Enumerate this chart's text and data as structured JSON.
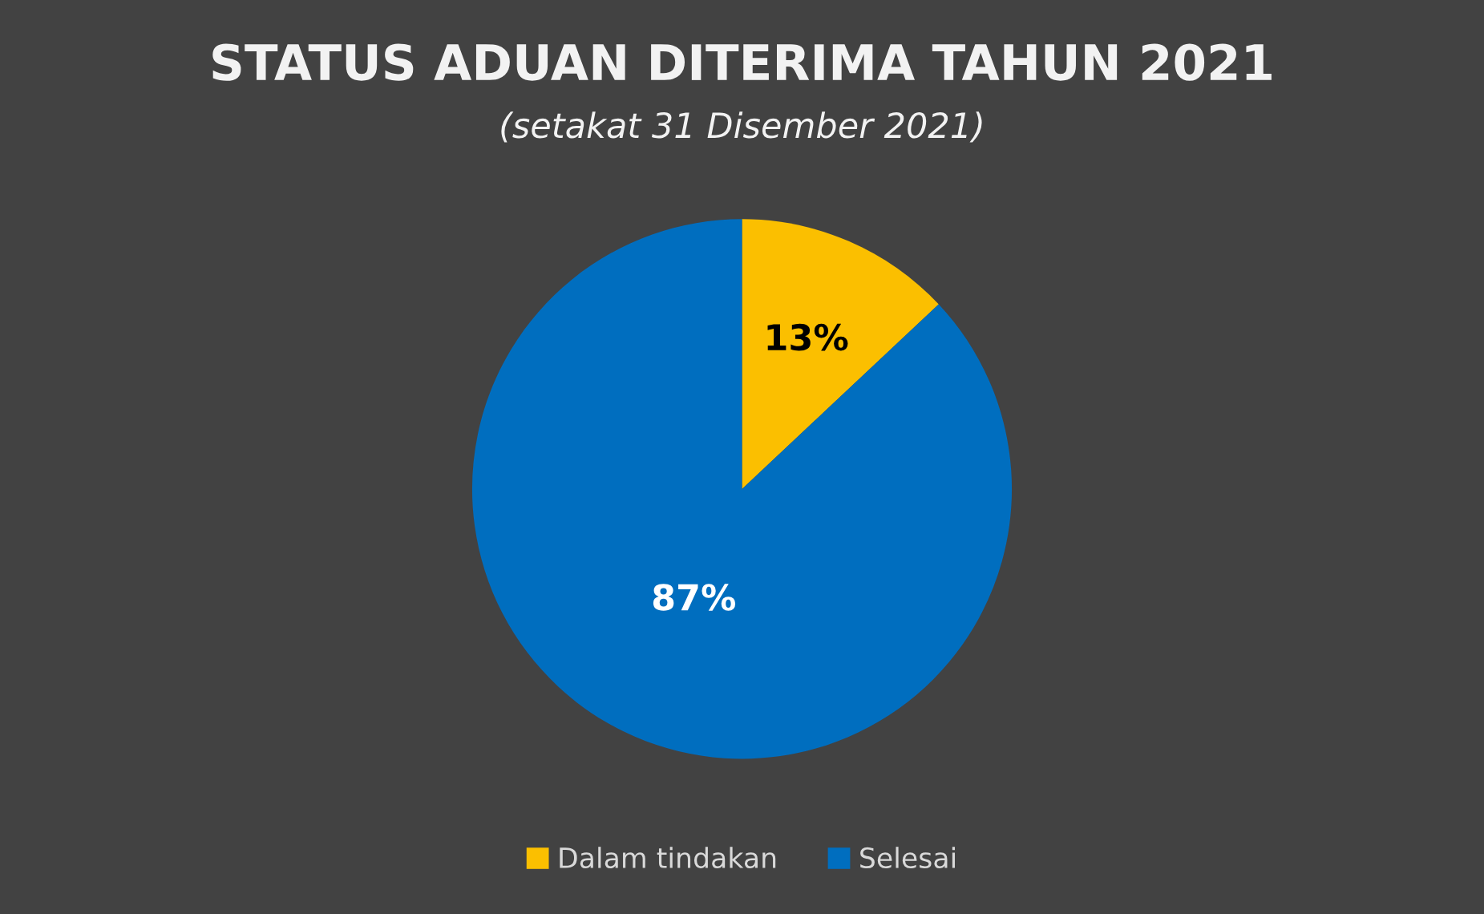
{
  "chart_data": {
    "type": "pie",
    "title": "STATUS ADUAN DITERIMA TAHUN 2021",
    "subtitle": "(setakat 31 Disember 2021)",
    "categories": [
      "Dalam tindakan",
      "Selesai"
    ],
    "values": [
      13,
      87
    ],
    "colors": [
      "#fbbf00",
      "#006ebf"
    ],
    "value_labels": [
      "13%",
      "87%"
    ],
    "legend": "bottom"
  }
}
